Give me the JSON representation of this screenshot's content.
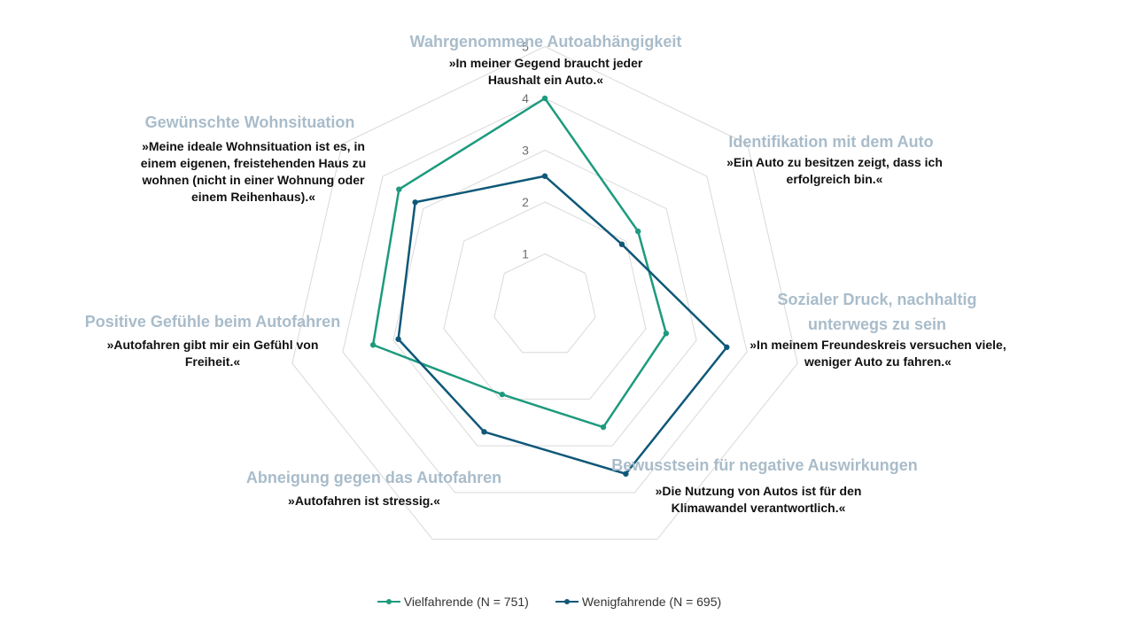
{
  "chart_data": {
    "type": "radar",
    "title": "",
    "rlim": [
      0,
      5
    ],
    "ticks": [
      "1",
      "2",
      "3",
      "4",
      "5"
    ],
    "grid": true,
    "legend_placement": "bottom",
    "categories": [
      {
        "title": "Wahrgenommene Autoabhängigkeit",
        "quote": "»In meiner Gegend braucht jeder Haushalt ein Auto.«"
      },
      {
        "title": "Identifikation mit dem Auto",
        "quote": "»Ein Auto zu besitzen zeigt, dass ich erfolgreich bin.«"
      },
      {
        "title": "Sozialer Druck, nachhaltig unterwegs zu sein",
        "quote": "»In meinem Freundeskreis versuchen viele, weniger Auto zu fahren.«"
      },
      {
        "title": "Bewusstsein für negative Auswirkungen",
        "quote": "»Die Nutzung von Autos ist für den Klimawandel verantwortlich.«"
      },
      {
        "title": "Abneigung gegen das Autofahren",
        "quote": "»Autofahren ist stressig.«"
      },
      {
        "title": "Positive Gefühle beim Autofahren",
        "quote": "»Autofahren gibt mir ein Gefühl von Freiheit.«"
      },
      {
        "title": "Gewünschte Wohnsituation",
        "quote": "»Meine ideale Wohnsituation ist es, in einem eigenen, freistehenden Haus zu wohnen (nicht in einer Wohnung oder einem Reihenhaus).«"
      }
    ],
    "series": [
      {
        "name": "Vielfahrende (N = 751)",
        "color": "#1e9a7e",
        "values": [
          4.0,
          2.3,
          2.4,
          2.6,
          1.9,
          3.4,
          3.6
        ]
      },
      {
        "name": "Wenigfahrende (N = 695)",
        "color": "#0f5878",
        "values": [
          2.5,
          1.9,
          3.6,
          3.6,
          2.7,
          2.9,
          3.2
        ]
      }
    ]
  }
}
